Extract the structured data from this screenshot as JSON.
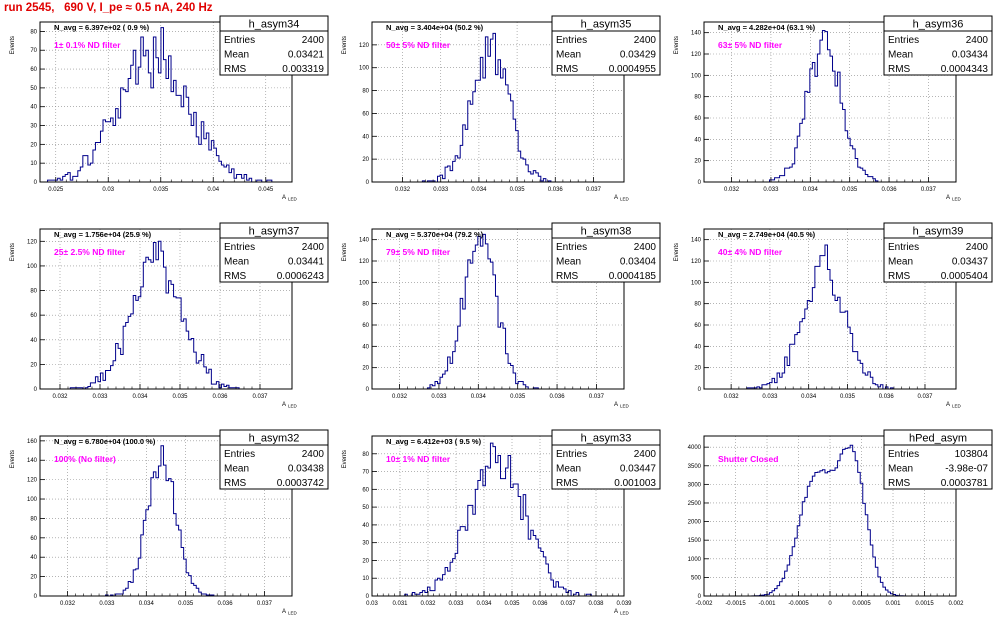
{
  "page_title": "run 2545,   690 V, I_pe ≈ 0.5 nA, 240 Hz",
  "colors": {
    "hist": "#00008b",
    "annotation": "#ff00ff",
    "title": "#e00000",
    "grid": "#888888"
  },
  "chart_data": [
    {
      "type": "histogram",
      "name": "h_asym34",
      "stats": {
        "entries_label": "Entries",
        "entries": "2400",
        "mean_label": "Mean",
        "mean": "0.03421",
        "rms_label": "RMS",
        "rms": "0.003319"
      },
      "header": "N_avg = 6.397e+02 ( 0.9 %)",
      "annotation": "1± 0.1% ND filter",
      "ylabel": "Events",
      "xlabel": "A",
      "xlim": [
        0.0235,
        0.0475
      ],
      "ylim": [
        0,
        85
      ],
      "xticks": [
        0.025,
        0.03,
        0.035,
        0.04,
        0.045
      ],
      "xtick_labels": [
        "0.025",
        "0.03",
        "0.035",
        "0.04",
        "0.045"
      ],
      "yticks": [
        0,
        10,
        20,
        30,
        40,
        50,
        60,
        70,
        80
      ],
      "mean": 0.03421,
      "sigma": 0.003319,
      "entries": 2400,
      "peak": 82
    },
    {
      "type": "histogram",
      "name": "h_asym35",
      "stats": {
        "entries_label": "Entries",
        "entries": "2400",
        "mean_label": "Mean",
        "mean": "0.03429",
        "rms_label": "RMS",
        "rms": "0.0004955"
      },
      "header": "N_avg = 3.404e+04 (50.2 %)",
      "annotation": "50± 5% ND filter",
      "ylabel": "Events",
      "xlabel": "A",
      "xlim": [
        0.0312,
        0.0378
      ],
      "ylim": [
        0,
        140
      ],
      "xticks": [
        0.032,
        0.033,
        0.034,
        0.035,
        0.036,
        0.037
      ],
      "xtick_labels": [
        "0.032",
        "0.033",
        "0.034",
        "0.035",
        "0.036",
        "0.037"
      ],
      "yticks": [
        0,
        20,
        40,
        60,
        80,
        100,
        120
      ],
      "mean": 0.03429,
      "sigma": 0.0004955,
      "entries": 2400,
      "peak": 130
    },
    {
      "type": "histogram",
      "name": "h_asym36",
      "stats": {
        "entries_label": "Entries",
        "entries": "2400",
        "mean_label": "Mean",
        "mean": "0.03434",
        "rms_label": "RMS",
        "rms": "0.0004343"
      },
      "header": "N_avg = 4.282e+04 (63.1 %)",
      "annotation": "63± 5% ND filter",
      "ylabel": "Events",
      "xlabel": "A",
      "xlim": [
        0.0313,
        0.0377
      ],
      "ylim": [
        0,
        150
      ],
      "xticks": [
        0.032,
        0.033,
        0.034,
        0.035,
        0.036,
        0.037
      ],
      "xtick_labels": [
        "0.032",
        "0.033",
        "0.034",
        "0.035",
        "0.036",
        "0.037"
      ],
      "yticks": [
        0,
        20,
        40,
        60,
        80,
        100,
        120,
        140
      ],
      "mean": 0.03434,
      "sigma": 0.0004343,
      "entries": 2400,
      "peak": 142
    },
    {
      "type": "histogram",
      "name": "h_asym37",
      "stats": {
        "entries_label": "Entries",
        "entries": "2400",
        "mean_label": "Mean",
        "mean": "0.03441",
        "rms_label": "RMS",
        "rms": "0.0006243"
      },
      "header": "N_avg = 1.756e+04 (25.9 %)",
      "annotation": "25± 2.5% ND filter",
      "ylabel": "Events",
      "xlabel": "A",
      "xlim": [
        0.0315,
        0.0378
      ],
      "ylim": [
        0,
        130
      ],
      "xticks": [
        0.032,
        0.033,
        0.034,
        0.035,
        0.036,
        0.037
      ],
      "xtick_labels": [
        "0.032",
        "0.033",
        "0.034",
        "0.035",
        "0.036",
        "0.037"
      ],
      "yticks": [
        0,
        20,
        40,
        60,
        80,
        100,
        120
      ],
      "mean": 0.03441,
      "sigma": 0.0006243,
      "entries": 2400,
      "peak": 120
    },
    {
      "type": "histogram",
      "name": "h_asym38",
      "stats": {
        "entries_label": "Entries",
        "entries": "2400",
        "mean_label": "Mean",
        "mean": "0.03404",
        "rms_label": "RMS",
        "rms": "0.0004185"
      },
      "header": "N_avg = 5.370e+04 (79.2 %)",
      "annotation": "79± 5% ND filter",
      "ylabel": "Events",
      "xlabel": "A",
      "xlim": [
        0.0313,
        0.0377
      ],
      "ylim": [
        0,
        150
      ],
      "xticks": [
        0.032,
        0.033,
        0.034,
        0.035,
        0.036,
        0.037
      ],
      "xtick_labels": [
        "0.032",
        "0.033",
        "0.034",
        "0.035",
        "0.036",
        "0.037"
      ],
      "yticks": [
        0,
        20,
        40,
        60,
        80,
        100,
        120,
        140
      ],
      "mean": 0.03404,
      "sigma": 0.0004185,
      "entries": 2400,
      "peak": 145
    },
    {
      "type": "histogram",
      "name": "h_asym39",
      "stats": {
        "entries_label": "Entries",
        "entries": "2400",
        "mean_label": "Mean",
        "mean": "0.03437",
        "rms_label": "RMS",
        "rms": "0.0005404"
      },
      "header": "N_avg = 2.749e+04 (40.5 %)",
      "annotation": "40± 4% ND filter",
      "ylabel": "Events",
      "xlabel": "A",
      "xlim": [
        0.0313,
        0.0378
      ],
      "ylim": [
        0,
        150
      ],
      "xticks": [
        0.032,
        0.033,
        0.034,
        0.035,
        0.036,
        0.037
      ],
      "xtick_labels": [
        "0.032",
        "0.033",
        "0.034",
        "0.035",
        "0.036",
        "0.037"
      ],
      "yticks": [
        0,
        20,
        40,
        60,
        80,
        100,
        120,
        140
      ],
      "mean": 0.03437,
      "sigma": 0.0005404,
      "entries": 2400,
      "peak": 135
    },
    {
      "type": "histogram",
      "name": "h_asym32",
      "stats": {
        "entries_label": "Entries",
        "entries": "2400",
        "mean_label": "Mean",
        "mean": "0.03438",
        "rms_label": "RMS",
        "rms": "0.0003742"
      },
      "header": "N_avg = 6.780e+04 (100.0 %)",
      "annotation": "100% (No filter)",
      "ylabel": "Events",
      "xlabel": "A",
      "xlim": [
        0.0313,
        0.0377
      ],
      "ylim": [
        0,
        165
      ],
      "xticks": [
        0.032,
        0.033,
        0.034,
        0.035,
        0.036,
        0.037
      ],
      "xtick_labels": [
        "0.032",
        "0.033",
        "0.034",
        "0.035",
        "0.036",
        "0.037"
      ],
      "yticks": [
        0,
        20,
        40,
        60,
        80,
        100,
        120,
        140,
        160
      ],
      "mean": 0.03438,
      "sigma": 0.0003742,
      "entries": 2400,
      "peak": 155
    },
    {
      "type": "histogram",
      "name": "h_asym33",
      "stats": {
        "entries_label": "Entries",
        "entries": "2400",
        "mean_label": "Mean",
        "mean": "0.03447",
        "rms_label": "RMS",
        "rms": "0.001003"
      },
      "header": "N_avg = 6.412e+03 ( 9.5 %)",
      "annotation": "10± 1% ND filter",
      "ylabel": "Events",
      "xlabel": "A",
      "xlim": [
        0.03,
        0.039
      ],
      "ylim": [
        0,
        90
      ],
      "xticks": [
        0.03,
        0.031,
        0.032,
        0.033,
        0.034,
        0.035,
        0.036,
        0.037,
        0.038,
        0.039
      ],
      "xtick_labels": [
        "0.03",
        "0.031",
        "0.032",
        "0.033",
        "0.034",
        "0.035",
        "0.036",
        "0.037",
        "0.038",
        "0.039"
      ],
      "yticks": [
        0,
        10,
        20,
        30,
        40,
        50,
        60,
        70,
        80
      ],
      "mean": 0.03447,
      "sigma": 0.001003,
      "entries": 2400,
      "peak": 86
    },
    {
      "type": "histogram",
      "name": "hPed_asym",
      "stats": {
        "entries_label": "Entries",
        "entries": "103804",
        "mean_label": "Mean",
        "mean": "-3.98e-07",
        "rms_label": "RMS",
        "rms": "0.0003781"
      },
      "header": "",
      "annotation": "Shutter Closed",
      "ylabel": "",
      "xlabel": "",
      "xlim": [
        -0.002,
        0.002
      ],
      "ylim": [
        0,
        4300
      ],
      "xticks": [
        -0.002,
        -0.0015,
        -0.001,
        -0.0005,
        0,
        0.0005,
        0.001,
        0.0015,
        0.002
      ],
      "xtick_labels": [
        "-0.002",
        "-0.0015",
        "-0.001",
        "-0.0005",
        "0",
        "0.0005",
        "0.001",
        "0.0015",
        "0.002"
      ],
      "yticks": [
        0,
        500,
        1000,
        1500,
        2000,
        2500,
        3000,
        3500,
        4000
      ],
      "bimodal": [
        {
          "mu": -0.00022,
          "s": 0.00027,
          "a": 3450
        },
        {
          "mu": 0.00035,
          "s": 0.00022,
          "a": 3950
        }
      ],
      "entries": 103804,
      "peak": 4050
    }
  ]
}
